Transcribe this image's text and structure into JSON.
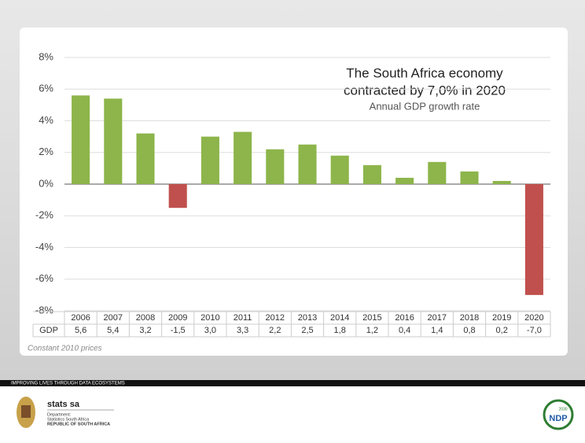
{
  "chart_data": {
    "type": "bar",
    "title": [
      "The South Africa economy",
      "contracted by 7,0% in 2020"
    ],
    "subtitle": "Annual GDP growth rate",
    "categories": [
      "2006",
      "2007",
      "2008",
      "2009",
      "2010",
      "2011",
      "2012",
      "2013",
      "2014",
      "2015",
      "2016",
      "2017",
      "2018",
      "2019",
      "2020"
    ],
    "values": [
      5.6,
      5.4,
      3.2,
      -1.5,
      3.0,
      3.3,
      2.2,
      2.5,
      1.8,
      1.2,
      0.4,
      1.4,
      0.8,
      0.2,
      -7.0
    ],
    "value_labels": [
      "5,6",
      "5,4",
      "3,2",
      "-1,5",
      "3,0",
      "3,3",
      "2,2",
      "2,5",
      "1,8",
      "1,2",
      "0,4",
      "1,4",
      "0,8",
      "0,2",
      "-7,0"
    ],
    "row_label": "GDP",
    "color": "#8db54b",
    "negative_color": "#c0504d",
    "ylim": [
      -8,
      8
    ],
    "yticks": [
      {
        "value": -8,
        "label": "-8%"
      },
      {
        "value": -6,
        "label": "-6%"
      },
      {
        "value": -4,
        "label": "-4%"
      },
      {
        "value": -2,
        "label": "-2%"
      },
      {
        "value": 0,
        "label": "0%"
      },
      {
        "value": 2,
        "label": "2%"
      },
      {
        "value": 4,
        "label": "4%"
      },
      {
        "value": 6,
        "label": "6%"
      },
      {
        "value": 8,
        "label": "8%"
      }
    ],
    "grid": true,
    "note": "Constant 2010 prices"
  },
  "footer": {
    "tagline": "IMPROVING LIVES THROUGH DATA ECOSYSTEMS",
    "brand": "stats sa",
    "department": "Department:",
    "organisation": "Statistics South Africa",
    "country": "REPUBLIC OF SOUTH AFRICA",
    "ndp": "NDP",
    "ndp_year": "2030"
  }
}
